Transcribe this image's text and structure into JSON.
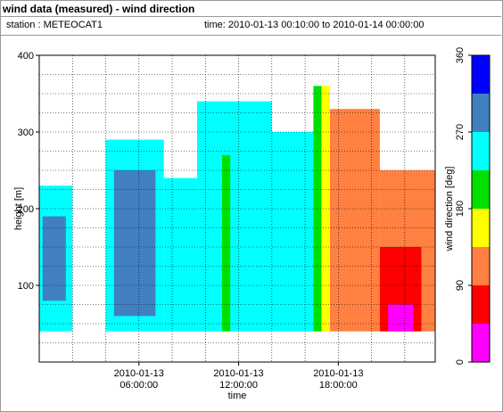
{
  "header": {
    "title": "wind data (measured) - wind direction",
    "station": "station : METEOCAT1",
    "time_range": "time: 2010-01-13 00:10:00 to 2010-01-14 00:00:00"
  },
  "chart_data": {
    "type": "heatmap",
    "title": "wind data (measured) - wind direction",
    "xlabel": "time",
    "ylabel": "height [m]",
    "xlim_hours": [
      0,
      23.833
    ],
    "ylim": [
      0,
      400
    ],
    "y_ticks": [
      100,
      200,
      300,
      400
    ],
    "x_ticks": [
      {
        "hour": 6,
        "label_date": "2010-01-13",
        "label_time": "06:00:00"
      },
      {
        "hour": 12,
        "label_date": "2010-01-13",
        "label_time": "12:00:00"
      },
      {
        "hour": 18,
        "label_date": "2010-01-13",
        "label_time": "18:00:00"
      }
    ],
    "grid": true,
    "colorbar": {
      "label": "wind direction [deg]",
      "ticks": [
        0,
        90,
        180,
        270,
        360
      ],
      "bins": [
        {
          "from": 0,
          "to": 45,
          "color": "#ff00ff"
        },
        {
          "from": 45,
          "to": 90,
          "color": "#ff0000"
        },
        {
          "from": 90,
          "to": 135,
          "color": "#ff8040"
        },
        {
          "from": 135,
          "to": 180,
          "color": "#ffff00"
        },
        {
          "from": 180,
          "to": 225,
          "color": "#00e000"
        },
        {
          "from": 225,
          "to": 270,
          "color": "#00ffff"
        },
        {
          "from": 270,
          "to": 315,
          "color": "#4080c0"
        },
        {
          "from": 315,
          "to": 360,
          "color": "#0000ff"
        }
      ]
    },
    "segments": [
      {
        "t0": 0.0,
        "t1": 2.0,
        "h0": 40,
        "h1": 230,
        "dir": 250
      },
      {
        "t0": 0.2,
        "t1": 1.6,
        "h0": 80,
        "h1": 190,
        "dir": 290
      },
      {
        "t0": 2.0,
        "t1": 4.0,
        "h0": 40,
        "h1": 0,
        "dir": 250
      },
      {
        "t0": 4.0,
        "t1": 7.5,
        "h0": 40,
        "h1": 290,
        "dir": 250
      },
      {
        "t0": 4.5,
        "t1": 7.0,
        "h0": 60,
        "h1": 250,
        "dir": 290
      },
      {
        "t0": 7.5,
        "t1": 9.5,
        "h0": 40,
        "h1": 240,
        "dir": 250
      },
      {
        "t0": 9.5,
        "t1": 14.0,
        "h0": 40,
        "h1": 340,
        "dir": 250
      },
      {
        "t0": 11.0,
        "t1": 11.5,
        "h0": 40,
        "h1": 270,
        "dir": 200
      },
      {
        "t0": 14.0,
        "t1": 16.5,
        "h0": 40,
        "h1": 300,
        "dir": 250
      },
      {
        "t0": 16.5,
        "t1": 17.0,
        "h0": 40,
        "h1": 360,
        "dir": 200
      },
      {
        "t0": 17.0,
        "t1": 17.5,
        "h0": 40,
        "h1": 360,
        "dir": 160
      },
      {
        "t0": 17.5,
        "t1": 20.5,
        "h0": 40,
        "h1": 330,
        "dir": 110
      },
      {
        "t0": 20.5,
        "t1": 23.833,
        "h0": 40,
        "h1": 250,
        "dir": 110
      },
      {
        "t0": 20.5,
        "t1": 23.0,
        "h0": 40,
        "h1": 150,
        "dir": 60
      },
      {
        "t0": 21.0,
        "t1": 22.5,
        "h0": 40,
        "h1": 75,
        "dir": 20
      }
    ]
  }
}
